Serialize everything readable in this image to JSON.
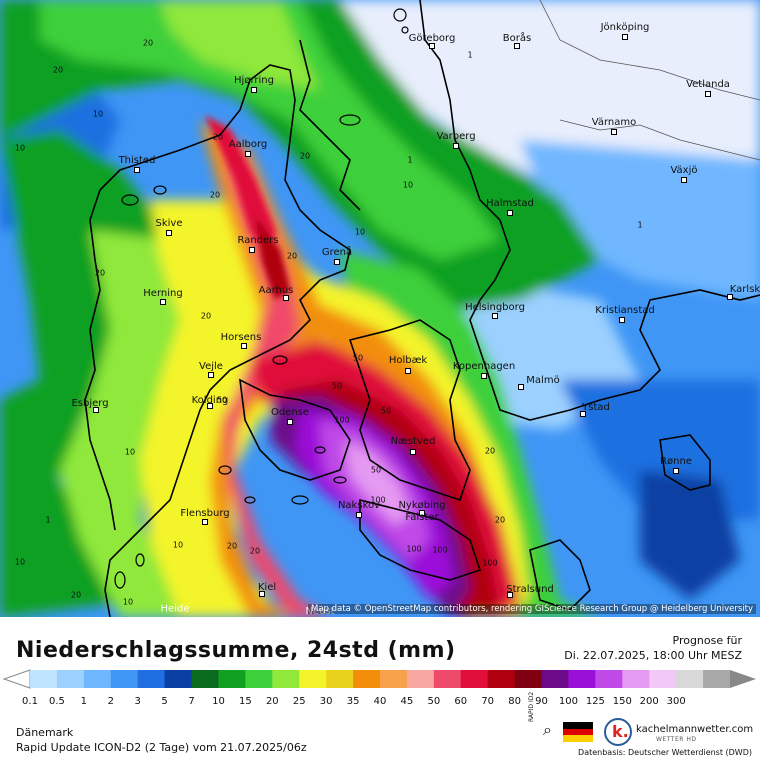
{
  "title": "Niederschlagssumme, 24std (mm)",
  "forecast": {
    "label": "Prognose für",
    "date": "Di. 22.07.2025, 18:00 Uhr MESZ"
  },
  "region": "Dänemark",
  "model": "Rapid Update ICON-D2 (2 Tage) vom  21.07.2025/06z",
  "map_attribution": "Map data © OpenStreetMap contributors, rendering GIScience Research Group @ Heidelberg University",
  "data_source": "Datenbasis: Deutscher Wetterdienst (DWD)",
  "brand": {
    "name": "kachelmannwetter.com",
    "subtitle": "WETTER HD",
    "rapid": "RAPID ID2"
  },
  "legend": {
    "labels": [
      "0.1",
      "0.5",
      "1",
      "2",
      "3",
      "5",
      "7",
      "10",
      "15",
      "20",
      "25",
      "30",
      "35",
      "40",
      "45",
      "50",
      "60",
      "70",
      "80",
      "90",
      "100",
      "125",
      "150",
      "200",
      "300"
    ],
    "colors": [
      "#bfe4ff",
      "#9bd0ff",
      "#6fb7ff",
      "#3f96f5",
      "#1f6fe0",
      "#0a3fa3",
      "#0a6b1e",
      "#11a021",
      "#3ed03a",
      "#8fe83a",
      "#f4f42a",
      "#e8d21c",
      "#f28e0c",
      "#f5a24a",
      "#f7a8a0",
      "#f04a6a",
      "#e0103a",
      "#b00010",
      "#800012",
      "#6d0a8a",
      "#9b10d8",
      "#c04ae8",
      "#e59af2",
      "#f2c8f7",
      "#d8d8d8",
      "#a8a8a8"
    ]
  },
  "cities": [
    {
      "name": "Göteborg"
    },
    {
      "name": "Borås"
    },
    {
      "name": "Jönköping"
    },
    {
      "name": "Hjørring"
    },
    {
      "name": "Vetlanda"
    },
    {
      "name": "Varberg"
    },
    {
      "name": "Aalborg"
    },
    {
      "name": "Värnamo"
    },
    {
      "name": "Thisted"
    },
    {
      "name": "Växjö"
    },
    {
      "name": "Halmstad"
    },
    {
      "name": "Skive"
    },
    {
      "name": "Randers"
    },
    {
      "name": "Grenå"
    },
    {
      "name": "Aarhus"
    },
    {
      "name": "Herning"
    },
    {
      "name": "Karlsk"
    },
    {
      "name": "Helsingborg"
    },
    {
      "name": "Kristianstad"
    },
    {
      "name": "Horsens"
    },
    {
      "name": "Holbæk"
    },
    {
      "name": "Vejle"
    },
    {
      "name": "Kopenhagen"
    },
    {
      "name": "Malmö"
    },
    {
      "name": "Esbjerg"
    },
    {
      "name": "Kolding"
    },
    {
      "name": "Odense"
    },
    {
      "name": "Ystad"
    },
    {
      "name": "Næstved"
    },
    {
      "name": "Rønne"
    },
    {
      "name": "Flensburg"
    },
    {
      "name": "Nakskov"
    },
    {
      "name": "Nykøbing"
    },
    {
      "name": "Falster"
    },
    {
      "name": "Kiel"
    },
    {
      "name": "Stralsund"
    },
    {
      "name": "Heide"
    },
    {
      "name": "Neust"
    }
  ],
  "contour_values": [
    "20",
    "20",
    "10",
    "10",
    "1",
    "20",
    "20",
    "10",
    "20",
    "10",
    "20",
    "50",
    "50",
    "100",
    "100",
    "20",
    "20",
    "20",
    "10",
    "10",
    "1",
    "1",
    "50",
    "100",
    "100",
    "20",
    "20",
    "10",
    "10",
    "1",
    "20",
    "20",
    "50",
    "50",
    "100"
  ]
}
